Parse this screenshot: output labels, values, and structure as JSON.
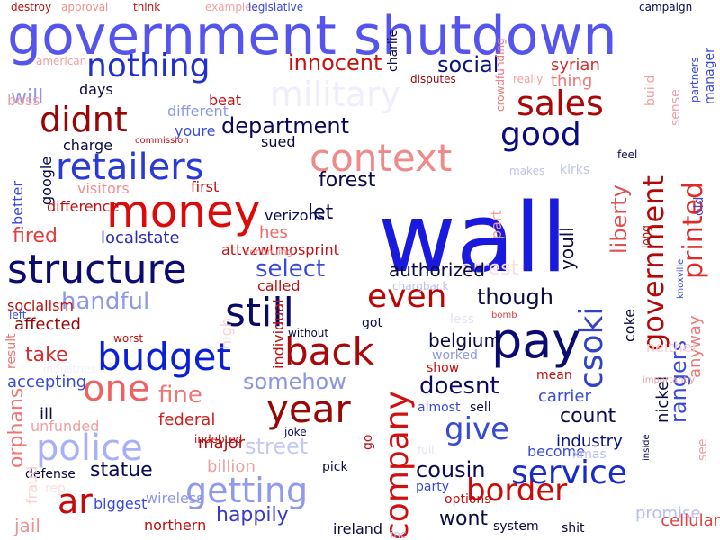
{
  "words": [
    {
      "text": "government shutdown",
      "color": "#5555ee"
    },
    {
      "text": "wall",
      "color": "#1a1adf"
    },
    {
      "text": "money",
      "color": "#dd0a0a"
    },
    {
      "text": "retailers",
      "color": "#2a3ad8"
    },
    {
      "text": "structure",
      "color": "#0c0c6e"
    },
    {
      "text": "budget",
      "color": "#0a1fd6"
    },
    {
      "text": "pay",
      "color": "#0a0a70"
    },
    {
      "text": "context",
      "color": "#f08a8a"
    },
    {
      "text": "company",
      "color": "#d01010"
    },
    {
      "text": "police",
      "color": "#a8b0f8"
    },
    {
      "text": "getting",
      "color": "#8f99ee"
    },
    {
      "text": "border",
      "color": "#cc0a0a"
    },
    {
      "text": "service",
      "color": "#1a2acb"
    },
    {
      "text": "back",
      "color": "#a80808"
    },
    {
      "text": "year",
      "color": "#990606"
    },
    {
      "text": "still",
      "color": "#0a0a66"
    },
    {
      "text": "nothing",
      "color": "#2030d0"
    },
    {
      "text": "didnt",
      "color": "#990505"
    },
    {
      "text": "sales",
      "color": "#aa0808"
    },
    {
      "text": "good",
      "color": "#0a0a80"
    },
    {
      "text": "csoki",
      "color": "#3242c8"
    },
    {
      "text": "government",
      "color": "#b40808"
    },
    {
      "text": "even",
      "color": "#bb0505"
    },
    {
      "text": "one",
      "color": "#f06060"
    },
    {
      "text": "give",
      "color": "#3a4ad8"
    },
    {
      "text": "ar",
      "color": "#c40a0a"
    },
    {
      "text": "military",
      "color": "#eeeeff"
    },
    {
      "text": "printed",
      "color": "#e02a2a"
    },
    {
      "text": "social",
      "color": "#0a1580"
    },
    {
      "text": "innocent",
      "color": "#cc1010"
    },
    {
      "text": "department",
      "color": "#0a0a55"
    },
    {
      "text": "select",
      "color": "#3a4ad8"
    },
    {
      "text": "handful",
      "color": "#8e98e6"
    },
    {
      "text": "though",
      "color": "#0a0a44"
    },
    {
      "text": "doesnt",
      "color": "#0a0a66"
    },
    {
      "text": "cousin",
      "color": "#0a0a55"
    },
    {
      "text": "count",
      "color": "#0a0a55"
    },
    {
      "text": "fine",
      "color": "#f07575"
    },
    {
      "text": "somehow",
      "color": "#8a94e0"
    },
    {
      "text": "street",
      "color": "#c5caf4"
    },
    {
      "text": "statue",
      "color": "#0a0a55"
    },
    {
      "text": "happily",
      "color": "#3a3ac8"
    },
    {
      "text": "forest",
      "color": "#0a0a44"
    },
    {
      "text": "fired",
      "color": "#e04040"
    },
    {
      "text": "let",
      "color": "#0a0a55"
    },
    {
      "text": "arrest",
      "color": "#fce0e0"
    },
    {
      "text": "liberty",
      "color": "#e05050"
    },
    {
      "text": "rangers",
      "color": "#3a4ad8"
    },
    {
      "text": "will",
      "color": "#8e98e6"
    },
    {
      "text": "take",
      "color": "#d03030"
    },
    {
      "text": "orphans",
      "color": "#f07575"
    },
    {
      "text": "jail",
      "color": "#f09090"
    },
    {
      "text": "wont",
      "color": "#0a0a44"
    },
    {
      "text": "localstate",
      "color": "#2a2ab8"
    },
    {
      "text": "hes",
      "color": "#f06a6a"
    },
    {
      "text": "affected",
      "color": "#990606"
    },
    {
      "text": "accepting",
      "color": "#3a4ad8"
    },
    {
      "text": "federal",
      "color": "#d02020"
    },
    {
      "text": "major",
      "color": "#aa1010"
    },
    {
      "text": "billion",
      "color": "#f0a0a0"
    },
    {
      "text": "ill",
      "color": "#0a0a44"
    },
    {
      "text": "youll",
      "color": "#0a0a44"
    },
    {
      "text": "authorized",
      "color": "#0a0a44"
    },
    {
      "text": "syrian",
      "color": "#d03030"
    },
    {
      "text": "thing",
      "color": "#f07575"
    },
    {
      "text": "promise",
      "color": "#b8bef0"
    },
    {
      "text": "nickel",
      "color": "#0a0a44"
    },
    {
      "text": "anyway",
      "color": "#f07575"
    },
    {
      "text": "carrier",
      "color": "#3a4ad8"
    },
    {
      "text": "industry",
      "color": "#0a1580"
    },
    {
      "text": "cellular",
      "color": "#e04040"
    },
    {
      "text": "better",
      "color": "#3a4ad8"
    },
    {
      "text": "google",
      "color": "#0a0a44"
    },
    {
      "text": "visitors",
      "color": "#f09090"
    },
    {
      "text": "first",
      "color": "#c01010"
    },
    {
      "text": "difference",
      "color": "#c01010"
    },
    {
      "text": "different",
      "color": "#8e98e6"
    },
    {
      "text": "charge",
      "color": "#0a0a44"
    },
    {
      "text": "youre",
      "color": "#3a4ad8"
    },
    {
      "text": "sued",
      "color": "#0a0a44"
    },
    {
      "text": "boss",
      "color": "#f0a0a0"
    },
    {
      "text": "days",
      "color": "#0a0a44"
    },
    {
      "text": "beat",
      "color": "#c01010"
    },
    {
      "text": "attvzwtmosprint",
      "color": "#c01010"
    },
    {
      "text": "verizons",
      "color": "#0a0a55"
    },
    {
      "text": "called",
      "color": "#c01010"
    },
    {
      "text": "high",
      "color": "#fcd0d0"
    },
    {
      "text": "individual",
      "color": "#c01010"
    },
    {
      "text": "worked",
      "color": "#8e98e6"
    },
    {
      "text": "show",
      "color": "#c01010"
    },
    {
      "text": "mean",
      "color": "#c01010"
    },
    {
      "text": "belgium",
      "color": "#0a0a44"
    },
    {
      "text": "got",
      "color": "#0a0a55"
    },
    {
      "text": "less",
      "color": "#e0e3fb"
    },
    {
      "text": "almost",
      "color": "#3a4ad8"
    },
    {
      "text": "sell",
      "color": "#0a0a44"
    },
    {
      "text": "become",
      "color": "#3a4ad8"
    },
    {
      "text": "xmas",
      "color": "#b8bef0"
    },
    {
      "text": "party",
      "color": "#3a4ad8"
    },
    {
      "text": "options",
      "color": "#c01010"
    },
    {
      "text": "system",
      "color": "#0a0a44"
    },
    {
      "text": "shit",
      "color": "#0a0a44"
    },
    {
      "text": "ireland",
      "color": "#0a0a44"
    },
    {
      "text": "northern",
      "color": "#c01010"
    },
    {
      "text": "wireless",
      "color": "#8e98e6"
    },
    {
      "text": "biggest",
      "color": "#3a4ad8"
    },
    {
      "text": "pick",
      "color": "#0a0a44"
    },
    {
      "text": "joke",
      "color": "#0a0a55"
    },
    {
      "text": "indebted",
      "color": "#c01010"
    },
    {
      "text": "unfunded",
      "color": "#f0a0a0"
    },
    {
      "text": "socialism",
      "color": "#c01010"
    },
    {
      "text": "left",
      "color": "#3a4ad8"
    },
    {
      "text": "worst",
      "color": "#c01010"
    },
    {
      "text": "defense",
      "color": "#0a0a44"
    },
    {
      "text": "without",
      "color": "#0a0a44"
    },
    {
      "text": "industries",
      "color": "#f0f0ff"
    },
    {
      "text": "destroy",
      "color": "#c01010"
    },
    {
      "text": "approval",
      "color": "#f09090"
    },
    {
      "text": "think",
      "color": "#c01010"
    },
    {
      "text": "example",
      "color": "#f0a0a0"
    },
    {
      "text": "legislative",
      "color": "#3a4ad8"
    },
    {
      "text": "campaign",
      "color": "#0a0a55"
    },
    {
      "text": "american",
      "color": "#f0a0a0"
    },
    {
      "text": "disputes",
      "color": "#990606"
    },
    {
      "text": "really",
      "color": "#f0a0a0"
    },
    {
      "text": "build",
      "color": "#f0a0a0"
    },
    {
      "text": "sense",
      "color": "#f0a0a0"
    },
    {
      "text": "manager",
      "color": "#3a4ad8"
    },
    {
      "text": "partners",
      "color": "#3a4ad8"
    },
    {
      "text": "commission",
      "color": "#c01010"
    },
    {
      "text": "makes",
      "color": "#c0c4f0"
    },
    {
      "text": "kirks",
      "color": "#c0c4f0"
    },
    {
      "text": "feel",
      "color": "#0a0a55"
    },
    {
      "text": "old",
      "color": "#3a4ad8"
    },
    {
      "text": "long",
      "color": "#c01010"
    },
    {
      "text": "knoxville",
      "color": "#3a4ad8"
    },
    {
      "text": "continuing",
      "color": "#f07575"
    },
    {
      "text": "crowdfunding",
      "color": "#f07575"
    },
    {
      "text": "part",
      "color": "#f0a0a0"
    },
    {
      "text": "coke",
      "color": "#0a0a44"
    },
    {
      "text": "neither",
      "color": "#fcd0d0"
    },
    {
      "text": "importantly",
      "color": "#f0a0a0"
    },
    {
      "text": "see",
      "color": "#f0a0a0"
    },
    {
      "text": "go",
      "color": "#c01010"
    },
    {
      "text": "chargback",
      "color": "#b8bef0"
    },
    {
      "text": "bomb",
      "color": "#e04040"
    },
    {
      "text": "inside",
      "color": "#0a0a44"
    },
    {
      "text": "charlie",
      "color": "#0a0a44"
    },
    {
      "text": "result",
      "color": "#f07575"
    },
    {
      "text": "fraud",
      "color": "#fcd0d0"
    },
    {
      "text": "rep",
      "color": "#fce0e0"
    },
    {
      "text": "full",
      "color": "#e0e3fb"
    },
    {
      "text": "inc",
      "color": "#c0c4f0"
    },
    {
      "text": "big",
      "color": "#f0d0d0"
    },
    {
      "text": "went",
      "color": "#3a4ad8"
    }
  ]
}
